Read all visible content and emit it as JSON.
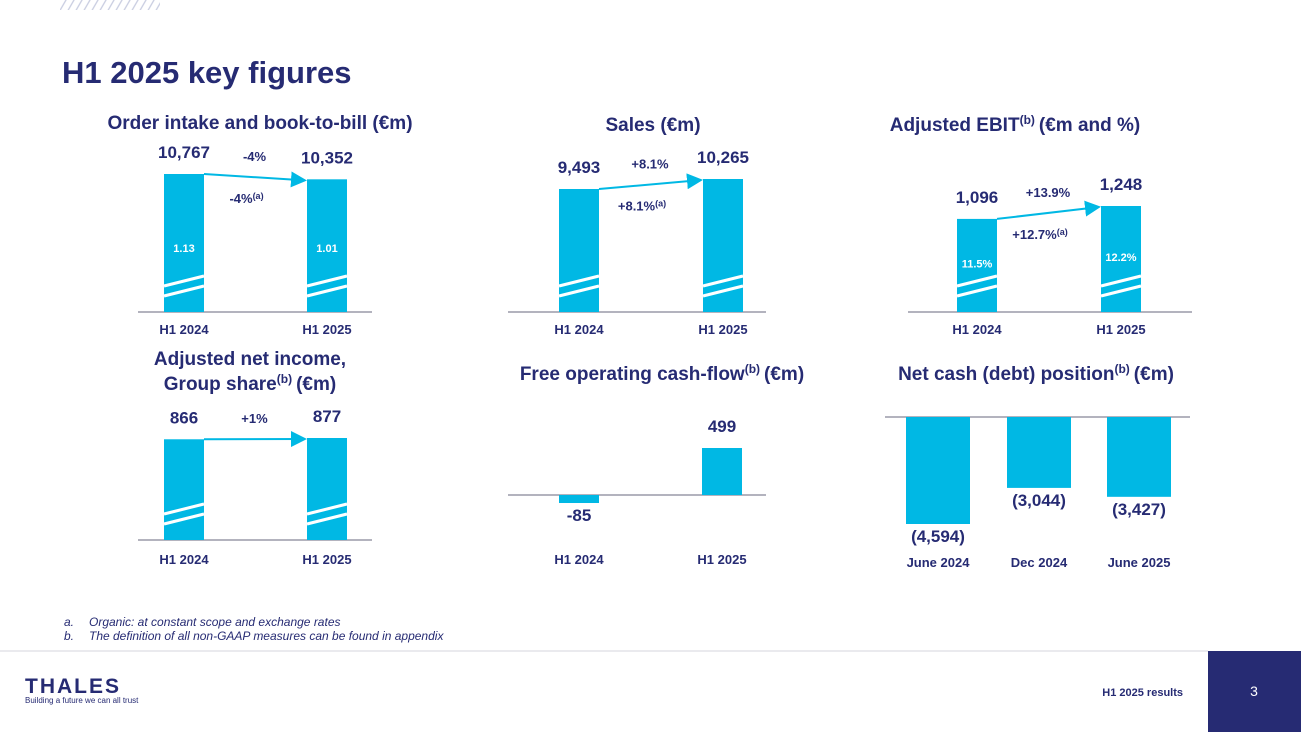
{
  "header": {
    "title": "H1 2025 key figures"
  },
  "chart_data": [
    {
      "type": "bar",
      "title": "Order intake and book-to-bill (€m)",
      "categories": [
        "H1 2024",
        "H1 2025"
      ],
      "values": [
        10767,
        10352
      ],
      "value_labels": [
        "10,767",
        "10,352"
      ],
      "inner_values": [
        1.13,
        1.01
      ],
      "color": "#00b8e4",
      "axis_break": true,
      "change": "-4%",
      "organic_change": "-4%",
      "organic_change_sup": "(a)"
    },
    {
      "type": "bar",
      "title": "Sales (€m)",
      "categories": [
        "H1 2024",
        "H1 2025"
      ],
      "values": [
        9493,
        10265
      ],
      "value_labels": [
        "9,493",
        "10,265"
      ],
      "color": "#00b8e4",
      "axis_break": true,
      "change": "+8.1%",
      "organic_change": "+8.1%",
      "organic_change_sup": "(a)"
    },
    {
      "type": "bar",
      "title": "Adjusted EBIT",
      "title_sup": "(b)",
      "title_end": "(€m and %)",
      "categories": [
        "H1 2024",
        "H1 2025"
      ],
      "values": [
        1096,
        1248
      ],
      "value_labels": [
        "1,096",
        "1,248"
      ],
      "inner_values": [
        11.5,
        12.2
      ],
      "inner_labels": [
        "11.5%",
        "12.2%"
      ],
      "color": "#00b8e4",
      "axis_break": true,
      "change": "+13.9%",
      "organic_change": "+12.7%",
      "organic_change_sup": "(a)"
    },
    {
      "type": "bar",
      "title": "Adjusted net income,",
      "title2": "Group share",
      "title_sup": "(b)",
      "title_end": "(€m)",
      "categories": [
        "H1 2024",
        "H1 2025"
      ],
      "values": [
        866,
        877
      ],
      "color": "#00b8e4",
      "axis_break": true,
      "change": "+1%"
    },
    {
      "type": "bar",
      "title": "Free operating cash-flow",
      "title_sup": "(b)",
      "title_end": "(€m)",
      "categories": [
        "H1 2024",
        "H1 2025"
      ],
      "values": [
        -85,
        499
      ],
      "color": "#00b8e4",
      "axis_break": false
    },
    {
      "type": "bar",
      "title": "Net cash (debt) position",
      "title_sup": "(b)",
      "title_end": "(€m)",
      "categories": [
        "June 2024",
        "Dec 2024",
        "June 2025"
      ],
      "values": [
        -4594,
        -3044,
        -3427
      ],
      "value_labels": [
        "(4,594)",
        "(3,044)",
        "(3,427)"
      ],
      "color": "#00b8e4",
      "axis_break": false
    }
  ],
  "footnotes": [
    {
      "marker": "a.",
      "text": "Organic: at constant scope and exchange rates"
    },
    {
      "marker": "b.",
      "text": "The definition of all non-GAAP measures can be found in appendix"
    }
  ],
  "footer": {
    "logo": "THALES",
    "tagline": "Building a future we can all trust",
    "report": "H1 2025 results",
    "page": 3
  }
}
